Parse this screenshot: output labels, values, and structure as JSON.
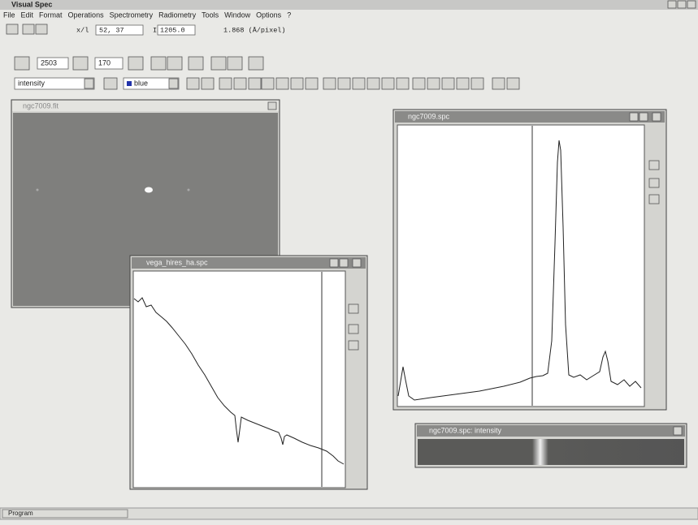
{
  "window": {
    "title": "Visual Spec"
  },
  "menu": [
    "File",
    "Edit",
    "Format",
    "Operations",
    "Spectrometry",
    "Radiometry",
    "Tools",
    "Window",
    "Options",
    "?"
  ],
  "toolbar": {
    "coord_label": "x/l",
    "coord_value": "52, 37",
    "intensity_label": "I",
    "intensity_value": "1205.0",
    "dispersion": "1.868 (Å/pixel)",
    "field_1": "2503",
    "field_2": "170",
    "mode_select": "intensity",
    "color_select": "blue"
  },
  "windows": [
    {
      "title": "ngc7009.fit"
    },
    {
      "title": "ngc7009.spc"
    },
    {
      "title": "vega_hires_ha.spc"
    },
    {
      "title": "ngc7009.spc: intensity"
    }
  ],
  "status_bar": {
    "text": "Program"
  }
}
